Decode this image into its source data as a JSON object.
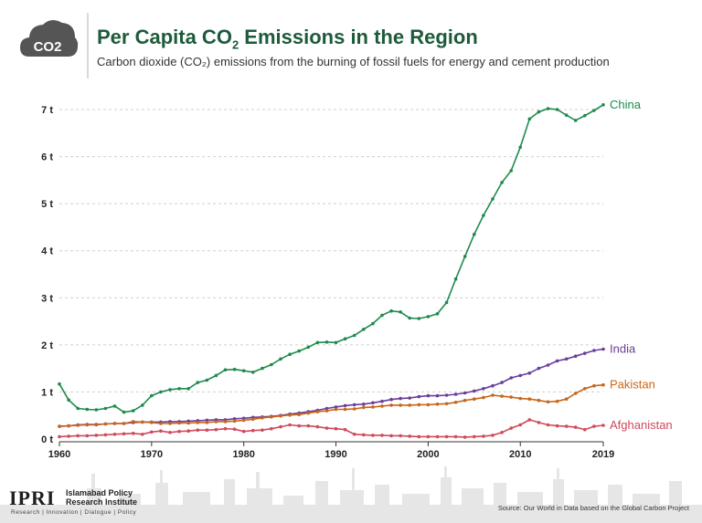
{
  "header": {
    "logo_text": "CO2",
    "title_main": "Per Capita CO",
    "title_sub": "2",
    "title_rest": " Emissions in the Region",
    "subtitle": "Carbon dioxide (CO₂) emissions from the burning of fossil fuels for energy and cement production"
  },
  "footer": {
    "logo": "IPRI",
    "org_line1": "Islamabad Policy",
    "org_line2": "Research Institute",
    "tagline": "Research | Innovation | Dialogue | Policy",
    "source": "Source: Our World in Data based on the Global Carbon Project"
  },
  "colors": {
    "china": "#1f8a4c",
    "india": "#6a3d9a",
    "pakistan": "#c8661a",
    "afghanistan": "#d1495b",
    "title": "#1d5b3a"
  },
  "chart_data": {
    "type": "line",
    "title": "Per Capita CO2 Emissions in the Region",
    "xlabel": "",
    "ylabel": "",
    "xlim": [
      1960,
      2019
    ],
    "ylim": [
      0,
      7
    ],
    "x_ticks": [
      "1960",
      "1970",
      "1980",
      "1990",
      "2000",
      "2010",
      "2019"
    ],
    "x_tick_values": [
      1960,
      1970,
      1980,
      1990,
      2000,
      2010,
      2019
    ],
    "y_ticks": [
      "0 t",
      "1 t",
      "2 t",
      "3 t",
      "4 t",
      "5 t",
      "6 t",
      "7 t"
    ],
    "y_tick_values": [
      0,
      1,
      2,
      3,
      4,
      5,
      6,
      7
    ],
    "grid": "horizontal dashed",
    "legend": "labels at line ends",
    "x": [
      1960,
      1961,
      1962,
      1963,
      1964,
      1965,
      1966,
      1967,
      1968,
      1969,
      1970,
      1971,
      1972,
      1973,
      1974,
      1975,
      1976,
      1977,
      1978,
      1979,
      1980,
      1981,
      1982,
      1983,
      1984,
      1985,
      1986,
      1987,
      1988,
      1989,
      1990,
      1991,
      1992,
      1993,
      1994,
      1995,
      1996,
      1997,
      1998,
      1999,
      2000,
      2001,
      2002,
      2003,
      2004,
      2005,
      2006,
      2007,
      2008,
      2009,
      2010,
      2011,
      2012,
      2013,
      2014,
      2015,
      2016,
      2017,
      2018,
      2019
    ],
    "series": [
      {
        "name": "China",
        "color": "#1f8a4c",
        "values": [
          1.17,
          0.83,
          0.65,
          0.63,
          0.62,
          0.65,
          0.7,
          0.57,
          0.6,
          0.72,
          0.92,
          1.0,
          1.05,
          1.07,
          1.07,
          1.2,
          1.25,
          1.35,
          1.47,
          1.48,
          1.45,
          1.42,
          1.5,
          1.58,
          1.7,
          1.8,
          1.87,
          1.95,
          2.05,
          2.06,
          2.05,
          2.13,
          2.2,
          2.33,
          2.45,
          2.63,
          2.72,
          2.7,
          2.57,
          2.56,
          2.6,
          2.66,
          2.9,
          3.4,
          3.88,
          4.35,
          4.75,
          5.1,
          5.45,
          5.7,
          6.2,
          6.8,
          6.95,
          7.02,
          7.0,
          6.88,
          6.77,
          6.87,
          6.98,
          7.1
        ]
      },
      {
        "name": "India",
        "color": "#6a3d9a",
        "values": [
          0.27,
          0.28,
          0.3,
          0.31,
          0.31,
          0.32,
          0.33,
          0.33,
          0.35,
          0.36,
          0.36,
          0.36,
          0.37,
          0.37,
          0.38,
          0.39,
          0.4,
          0.41,
          0.41,
          0.43,
          0.44,
          0.46,
          0.47,
          0.48,
          0.5,
          0.53,
          0.55,
          0.58,
          0.61,
          0.65,
          0.68,
          0.71,
          0.73,
          0.74,
          0.77,
          0.8,
          0.84,
          0.86,
          0.87,
          0.9,
          0.92,
          0.92,
          0.93,
          0.95,
          0.98,
          1.02,
          1.07,
          1.13,
          1.2,
          1.3,
          1.35,
          1.4,
          1.5,
          1.57,
          1.66,
          1.7,
          1.76,
          1.82,
          1.88,
          1.91
        ]
      },
      {
        "name": "Pakistan",
        "color": "#c8661a",
        "values": [
          0.27,
          0.28,
          0.29,
          0.3,
          0.3,
          0.32,
          0.33,
          0.33,
          0.37,
          0.36,
          0.35,
          0.33,
          0.33,
          0.34,
          0.34,
          0.35,
          0.35,
          0.37,
          0.37,
          0.38,
          0.4,
          0.42,
          0.45,
          0.47,
          0.49,
          0.51,
          0.52,
          0.55,
          0.58,
          0.6,
          0.63,
          0.63,
          0.64,
          0.67,
          0.68,
          0.7,
          0.72,
          0.72,
          0.72,
          0.73,
          0.73,
          0.74,
          0.75,
          0.78,
          0.82,
          0.85,
          0.88,
          0.93,
          0.91,
          0.89,
          0.86,
          0.85,
          0.82,
          0.79,
          0.8,
          0.85,
          0.97,
          1.07,
          1.13,
          1.15
        ]
      },
      {
        "name": "Afghanistan",
        "color": "#d1495b",
        "values": [
          0.05,
          0.06,
          0.07,
          0.07,
          0.08,
          0.09,
          0.1,
          0.11,
          0.12,
          0.1,
          0.15,
          0.17,
          0.14,
          0.16,
          0.17,
          0.19,
          0.19,
          0.2,
          0.22,
          0.21,
          0.16,
          0.18,
          0.19,
          0.22,
          0.26,
          0.3,
          0.28,
          0.28,
          0.26,
          0.23,
          0.22,
          0.2,
          0.1,
          0.09,
          0.08,
          0.08,
          0.07,
          0.07,
          0.06,
          0.05,
          0.05,
          0.05,
          0.05,
          0.05,
          0.04,
          0.05,
          0.06,
          0.08,
          0.14,
          0.23,
          0.3,
          0.41,
          0.35,
          0.3,
          0.28,
          0.27,
          0.25,
          0.2,
          0.27,
          0.29
        ]
      }
    ]
  }
}
